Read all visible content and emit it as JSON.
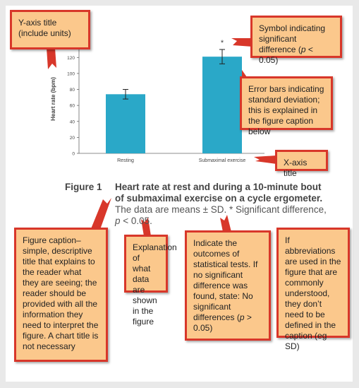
{
  "chart_data": {
    "type": "bar",
    "y_axis_label": "Heart rate (bpm)",
    "categories": [
      "Resting",
      "Submaximal exercise"
    ],
    "values": [
      74,
      121
    ],
    "errors": [
      6,
      9
    ],
    "color": "#2aa8c8",
    "annotations": [
      {
        "category": 1,
        "text": "*"
      }
    ],
    "ylim": [
      0,
      130
    ],
    "yticks": [
      0,
      20,
      40,
      60,
      80,
      100,
      120
    ],
    "grid": false
  },
  "caption": {
    "label": "Figure 1",
    "title": "Heart rate at rest and during a 10-minute bout of submaximal exercise on a cycle ergometer.",
    "segments": [
      {
        "text": " The data are means ± SD. * Significant difference, "
      },
      {
        "text": "p",
        "style": "italic"
      },
      {
        "text": " < 0.05."
      }
    ]
  },
  "callouts": [
    {
      "segments": [
        {
          "text": "Y-axis title (include units)"
        }
      ]
    },
    {
      "segments": [
        {
          "text": "Symbol indicating significant difference ("
        },
        {
          "text": "p",
          "style": "italic"
        },
        {
          "text": " < 0.05)"
        }
      ]
    },
    {
      "segments": [
        {
          "text": "Error bars indicating standard deviation; this is explained in the figure caption below"
        }
      ]
    },
    {
      "segments": [
        {
          "text": "X-axis title"
        }
      ]
    },
    {
      "segments": [
        {
          "text": "Figure caption– simple, descriptive title that explains to the reader what they are seeing; the reader should be provided with all the information they need to interpret the figure. A chart title is not necessary"
        }
      ]
    },
    {
      "segments": [
        {
          "text": "Explanation of what data are shown in the figure"
        }
      ]
    },
    {
      "segments": [
        {
          "text": "Indicate the outcomes of statistical tests. If no significant difference was found, state: No significant differences ("
        },
        {
          "text": "p",
          "style": "italic"
        },
        {
          "text": " > 0.05)"
        }
      ]
    },
    {
      "segments": [
        {
          "text": "If abbreviations are used in the figure that are commonly understood, they don’t need to be defined in the caption (eg SD)"
        }
      ]
    }
  ]
}
